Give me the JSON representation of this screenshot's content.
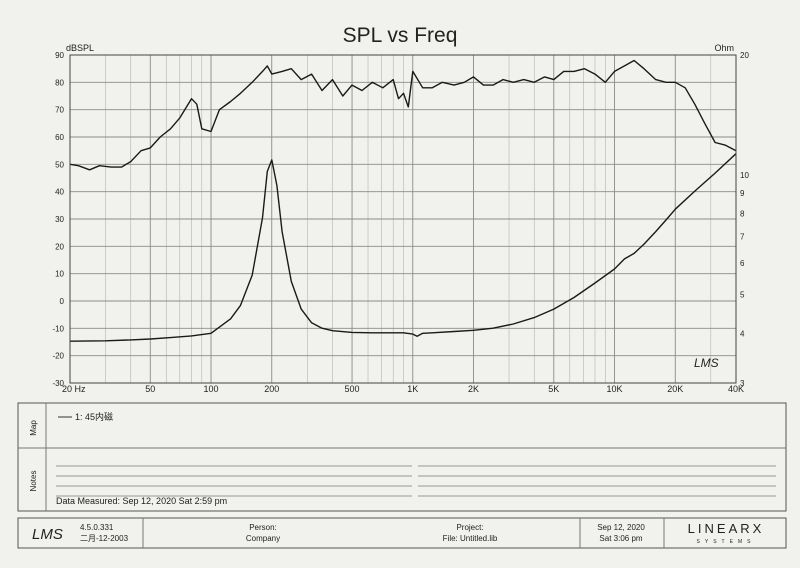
{
  "chart_data": {
    "type": "line",
    "title": "SPL vs Freq",
    "ylabel_left": "dBSPL",
    "ylabel_right": "Ohm",
    "x_scale": "log",
    "xlim": [
      20,
      40000
    ],
    "ylim_left": [
      -30,
      90
    ],
    "ylim_right": [
      3,
      20
    ],
    "y_scale_right": "log",
    "grid": true,
    "x_ticks": [
      {
        "v": 20,
        "label": "20  Hz"
      },
      {
        "v": 50,
        "label": "50"
      },
      {
        "v": 100,
        "label": "100"
      },
      {
        "v": 200,
        "label": "200"
      },
      {
        "v": 500,
        "label": "500"
      },
      {
        "v": 1000,
        "label": "1K"
      },
      {
        "v": 2000,
        "label": "2K"
      },
      {
        "v": 5000,
        "label": "5K"
      },
      {
        "v": 10000,
        "label": "10K"
      },
      {
        "v": 20000,
        "label": "20K"
      },
      {
        "v": 40000,
        "label": "40K"
      }
    ],
    "y_ticks_left": [
      90,
      80,
      70,
      60,
      50,
      40,
      30,
      20,
      10,
      0,
      -10,
      -20,
      -30
    ],
    "y_ticks_right": [
      {
        "v": 20,
        "label": "20"
      },
      {
        "v": 10,
        "label": "10"
      },
      {
        "v": 9,
        "label": "9"
      },
      {
        "v": 8,
        "label": "8"
      },
      {
        "v": 7,
        "label": "7"
      },
      {
        "v": 6,
        "label": "6"
      },
      {
        "v": 5,
        "label": "5"
      },
      {
        "v": 4,
        "label": "4"
      },
      {
        "v": 3,
        "label": "3"
      }
    ],
    "series": [
      {
        "axis": "left",
        "x": [
          20,
          22,
          25,
          28,
          32,
          36,
          40,
          45,
          50,
          56,
          63,
          70,
          80,
          85,
          90,
          100,
          110,
          125,
          140,
          160,
          180,
          190,
          200,
          225,
          250,
          280,
          315,
          355,
          400,
          450,
          500,
          560,
          630,
          710,
          800,
          850,
          900,
          950,
          1000,
          1120,
          1250,
          1400,
          1600,
          1800,
          2000,
          2240,
          2500,
          2800,
          3150,
          3550,
          4000,
          4500,
          5000,
          5600,
          6300,
          7100,
          8000,
          9000,
          10000,
          11200,
          12500,
          14000,
          16000,
          18000,
          20000,
          22400,
          25000,
          28000,
          31500,
          35500,
          40000
        ],
        "y": [
          50,
          49.5,
          48,
          49.5,
          49,
          49,
          51,
          55,
          56,
          60,
          63,
          67,
          74,
          72,
          63,
          62,
          70,
          73,
          76,
          80,
          84,
          86,
          83,
          84,
          85,
          81,
          83,
          77,
          81,
          75,
          79,
          77,
          80,
          78,
          81,
          74,
          76,
          71,
          84,
          78,
          78,
          80,
          79,
          80,
          82,
          79,
          79,
          81,
          80,
          81,
          80,
          82,
          81,
          84,
          84,
          85,
          83,
          80,
          84,
          86,
          88,
          85,
          81,
          80,
          80,
          78,
          72,
          65,
          58,
          57,
          55
        ]
      },
      {
        "axis": "right",
        "x": [
          20,
          30,
          40,
          50,
          63,
          80,
          100,
          125,
          140,
          160,
          180,
          190,
          200,
          212,
          225,
          250,
          280,
          315,
          355,
          400,
          500,
          630,
          800,
          900,
          1000,
          1050,
          1120,
          1250,
          1600,
          2000,
          2500,
          3150,
          4000,
          5000,
          6300,
          8000,
          10000,
          11200,
          12500,
          14000,
          16000,
          18000,
          20000,
          25000,
          31500,
          40000
        ],
        "y": [
          3.82,
          3.83,
          3.85,
          3.87,
          3.9,
          3.94,
          4,
          4.35,
          4.7,
          5.6,
          7.8,
          10.2,
          10.9,
          9.4,
          7.2,
          5.4,
          4.6,
          4.25,
          4.12,
          4.06,
          4.02,
          4.01,
          4.01,
          4.01,
          3.98,
          3.93,
          4.0,
          4.01,
          4.04,
          4.07,
          4.12,
          4.22,
          4.38,
          4.6,
          4.92,
          5.35,
          5.8,
          6.15,
          6.35,
          6.7,
          7.2,
          7.7,
          8.2,
          9.1,
          10.1,
          11.3
        ]
      }
    ]
  },
  "annotation": "LMS",
  "map": {
    "label": "Map",
    "entry": "1: 45内磁"
  },
  "notes": {
    "label": "Notes",
    "measured": "Data Measured: Sep 12, 2020  Sat  2:59 pm"
  },
  "footer": {
    "logo": "LMS",
    "version": "4.5.0.331",
    "version_date": "二月-12-2003",
    "person_label": "Person:",
    "company_label": "Company",
    "project_label": "Project:",
    "file_label": "File: Untitled.lib",
    "print_date": "Sep 12, 2020",
    "print_time": "Sat  3:06 pm",
    "brand": "LINEARX",
    "brand_sub": "SYSTEMS"
  }
}
